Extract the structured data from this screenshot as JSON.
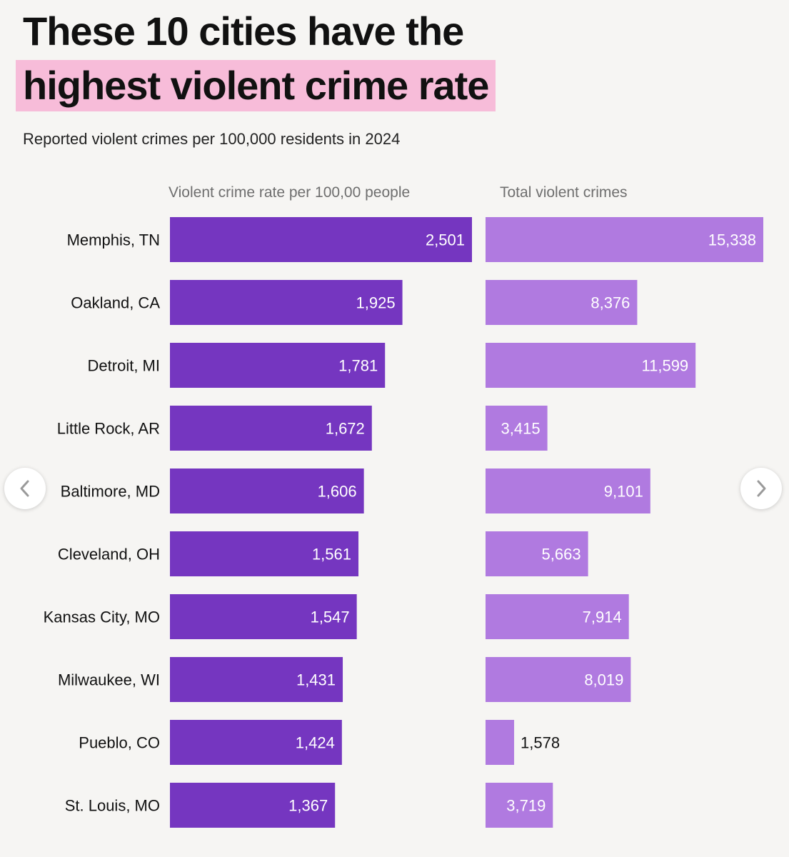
{
  "header": {
    "title_line1": "These 10 cities have the",
    "title_line2": "highest violent crime rate",
    "subtitle": "Reported violent crimes per 100,000 residents in 2024"
  },
  "colors": {
    "rate_bar": "#7536c0",
    "total_bar": "#b07ae0",
    "highlight": "#f7bcd9",
    "background": "#f6f5f3"
  },
  "chart_data": {
    "type": "bar",
    "orientation": "horizontal",
    "title": "These 10 cities have the highest violent crime rate",
    "subtitle": "Reported violent crimes per 100,000 residents in 2024",
    "categories": [
      "Memphis, TN",
      "Oakland, CA",
      "Detroit, MI",
      "Little Rock, AR",
      "Baltimore, MD",
      "Cleveland, OH",
      "Kansas City, MO",
      "Milwaukee, WI",
      "Pueblo, CO",
      "St. Louis, MO"
    ],
    "series": [
      {
        "name": "Violent crime rate per 100,00 people",
        "values": [
          2501,
          1925,
          1781,
          1672,
          1606,
          1561,
          1547,
          1431,
          1424,
          1367
        ],
        "labels": [
          "2,501",
          "1,925",
          "1,781",
          "1,672",
          "1,606",
          "1,561",
          "1,547",
          "1,431",
          "1,424",
          "1,367"
        ],
        "xlim": [
          0,
          2501
        ]
      },
      {
        "name": "Total violent crimes",
        "values": [
          15338,
          8376,
          11599,
          3415,
          9101,
          5663,
          7914,
          8019,
          1578,
          3719
        ],
        "labels": [
          "15,338",
          "8,376",
          "11,599",
          "3,415",
          "9,101",
          "5,663",
          "7,914",
          "8,019",
          "1,578",
          "3,719"
        ],
        "xlim": [
          0,
          15338
        ]
      }
    ],
    "grid": false,
    "legend": "none"
  },
  "navigation": {
    "prev_icon": "chevron-left-icon",
    "next_icon": "chevron-right-icon"
  }
}
